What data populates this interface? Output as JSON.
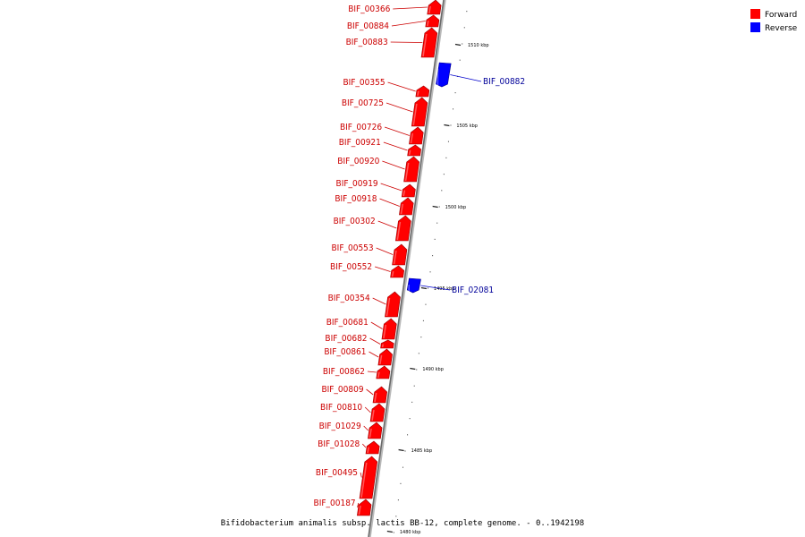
{
  "colors": {
    "forward": "#ff0000",
    "reverse": "#0000ff",
    "forward_label": "#cc0000",
    "reverse_label": "#000099"
  },
  "legend": [
    {
      "label": "Forward",
      "color": "#ff0000"
    },
    {
      "label": "Reverse",
      "color": "#0000ff"
    }
  ],
  "caption": "Bifidobacterium animalis subsp. lactis BB-12, complete genome. - 0..1942198",
  "ticks": [
    "1510 kbp",
    "1505 kbp",
    "1500 kbp",
    "1495 kbp",
    "1490 kbp",
    "1485 kbp",
    "1480 kbp"
  ],
  "genes": [
    {
      "name": "BIF_00366",
      "strand": "forward"
    },
    {
      "name": "BIF_00884",
      "strand": "forward"
    },
    {
      "name": "BIF_00883",
      "strand": "forward"
    },
    {
      "name": "BIF_00882",
      "strand": "reverse"
    },
    {
      "name": "BIF_00355",
      "strand": "forward"
    },
    {
      "name": "BIF_00725",
      "strand": "forward"
    },
    {
      "name": "BIF_00726",
      "strand": "forward"
    },
    {
      "name": "BIF_00921",
      "strand": "forward"
    },
    {
      "name": "BIF_00920",
      "strand": "forward"
    },
    {
      "name": "BIF_00919",
      "strand": "forward"
    },
    {
      "name": "BIF_00918",
      "strand": "forward"
    },
    {
      "name": "BIF_00302",
      "strand": "forward"
    },
    {
      "name": "BIF_00553",
      "strand": "forward"
    },
    {
      "name": "BIF_00552",
      "strand": "forward"
    },
    {
      "name": "BIF_02081",
      "strand": "reverse"
    },
    {
      "name": "BIF_00354",
      "strand": "forward"
    },
    {
      "name": "BIF_00681",
      "strand": "forward"
    },
    {
      "name": "BIF_00682",
      "strand": "forward"
    },
    {
      "name": "BIF_00861",
      "strand": "forward"
    },
    {
      "name": "BIF_00862",
      "strand": "forward"
    },
    {
      "name": "BIF_00809",
      "strand": "forward"
    },
    {
      "name": "BIF_00810",
      "strand": "forward"
    },
    {
      "name": "BIF_01029",
      "strand": "forward"
    },
    {
      "name": "BIF_01028",
      "strand": "forward"
    },
    {
      "name": "BIF_00495",
      "strand": "forward"
    },
    {
      "name": "BIF_00187",
      "strand": "forward"
    }
  ]
}
